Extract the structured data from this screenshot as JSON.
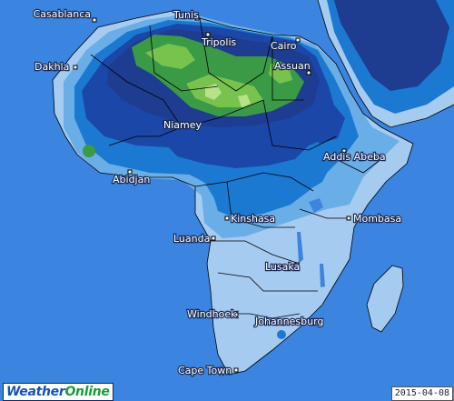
{
  "map": {
    "date": "2015-04-08",
    "logo": {
      "part1": "Weather",
      "part2": "Online"
    },
    "colors": {
      "ocean": "#3b84df",
      "level_1": "#a6cbf0",
      "level_2": "#6aaee8",
      "level_3": "#1b79d1",
      "level_4": "#1a47a8",
      "level_5": "#1e3c90",
      "level_6": "#3a9a45",
      "level_7": "#78c24e",
      "level_8": "#b7e28a"
    },
    "cities": [
      {
        "name": "Casablanca",
        "label_side": "left"
      },
      {
        "name": "Tunis"
      },
      {
        "name": "Tripolis"
      },
      {
        "name": "Cairo"
      },
      {
        "name": "Dakhla"
      },
      {
        "name": "Assuan"
      },
      {
        "name": "Niamey"
      },
      {
        "name": "Addis Abeba"
      },
      {
        "name": "Abidjan"
      },
      {
        "name": "Kinshasa"
      },
      {
        "name": "Mombasa"
      },
      {
        "name": "Luanda"
      },
      {
        "name": "Lusaka"
      },
      {
        "name": "Windhoek"
      },
      {
        "name": "Johannesburg"
      },
      {
        "name": "Cape Town"
      }
    ]
  }
}
